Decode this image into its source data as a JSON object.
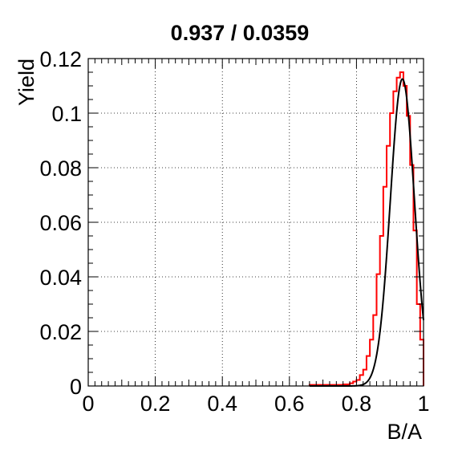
{
  "chart_data": {
    "type": "line",
    "title": "0.937 / 0.0359",
    "xlabel": "B/A",
    "ylabel": "Yield",
    "xlim": [
      0,
      1
    ],
    "ylim": [
      0,
      0.12
    ],
    "x_ticks": [
      "0",
      "0.2",
      "0.4",
      "0.6",
      "0.8",
      "1"
    ],
    "y_ticks": [
      "0",
      "0.02",
      "0.04",
      "0.06",
      "0.08",
      "0.1",
      "0.12"
    ],
    "grid": true,
    "series": [
      {
        "kind": "histogram",
        "color": "#ff0000",
        "bin_edges": [
          0.66,
          0.68,
          0.7,
          0.72,
          0.74,
          0.76,
          0.78,
          0.79,
          0.8,
          0.81,
          0.82,
          0.83,
          0.84,
          0.85,
          0.86,
          0.87,
          0.88,
          0.89,
          0.9,
          0.91,
          0.92,
          0.93,
          0.94,
          0.95,
          0.96,
          0.97,
          0.98,
          0.99,
          1.0
        ],
        "values": [
          0.0004,
          0.0004,
          0.0004,
          0.0004,
          0.0004,
          0.0006,
          0.001,
          0.0016,
          0.0022,
          0.004,
          0.006,
          0.011,
          0.017,
          0.026,
          0.041,
          0.055,
          0.073,
          0.088,
          0.1,
          0.108,
          0.113,
          0.115,
          0.11,
          0.099,
          0.081,
          0.057,
          0.03,
          0.017
        ]
      },
      {
        "kind": "fit",
        "color": "#000000",
        "mean": 0.937,
        "sigma": 0.0359,
        "amplitude": 0.1125,
        "x_range": [
          0.66,
          1.0
        ]
      }
    ]
  }
}
